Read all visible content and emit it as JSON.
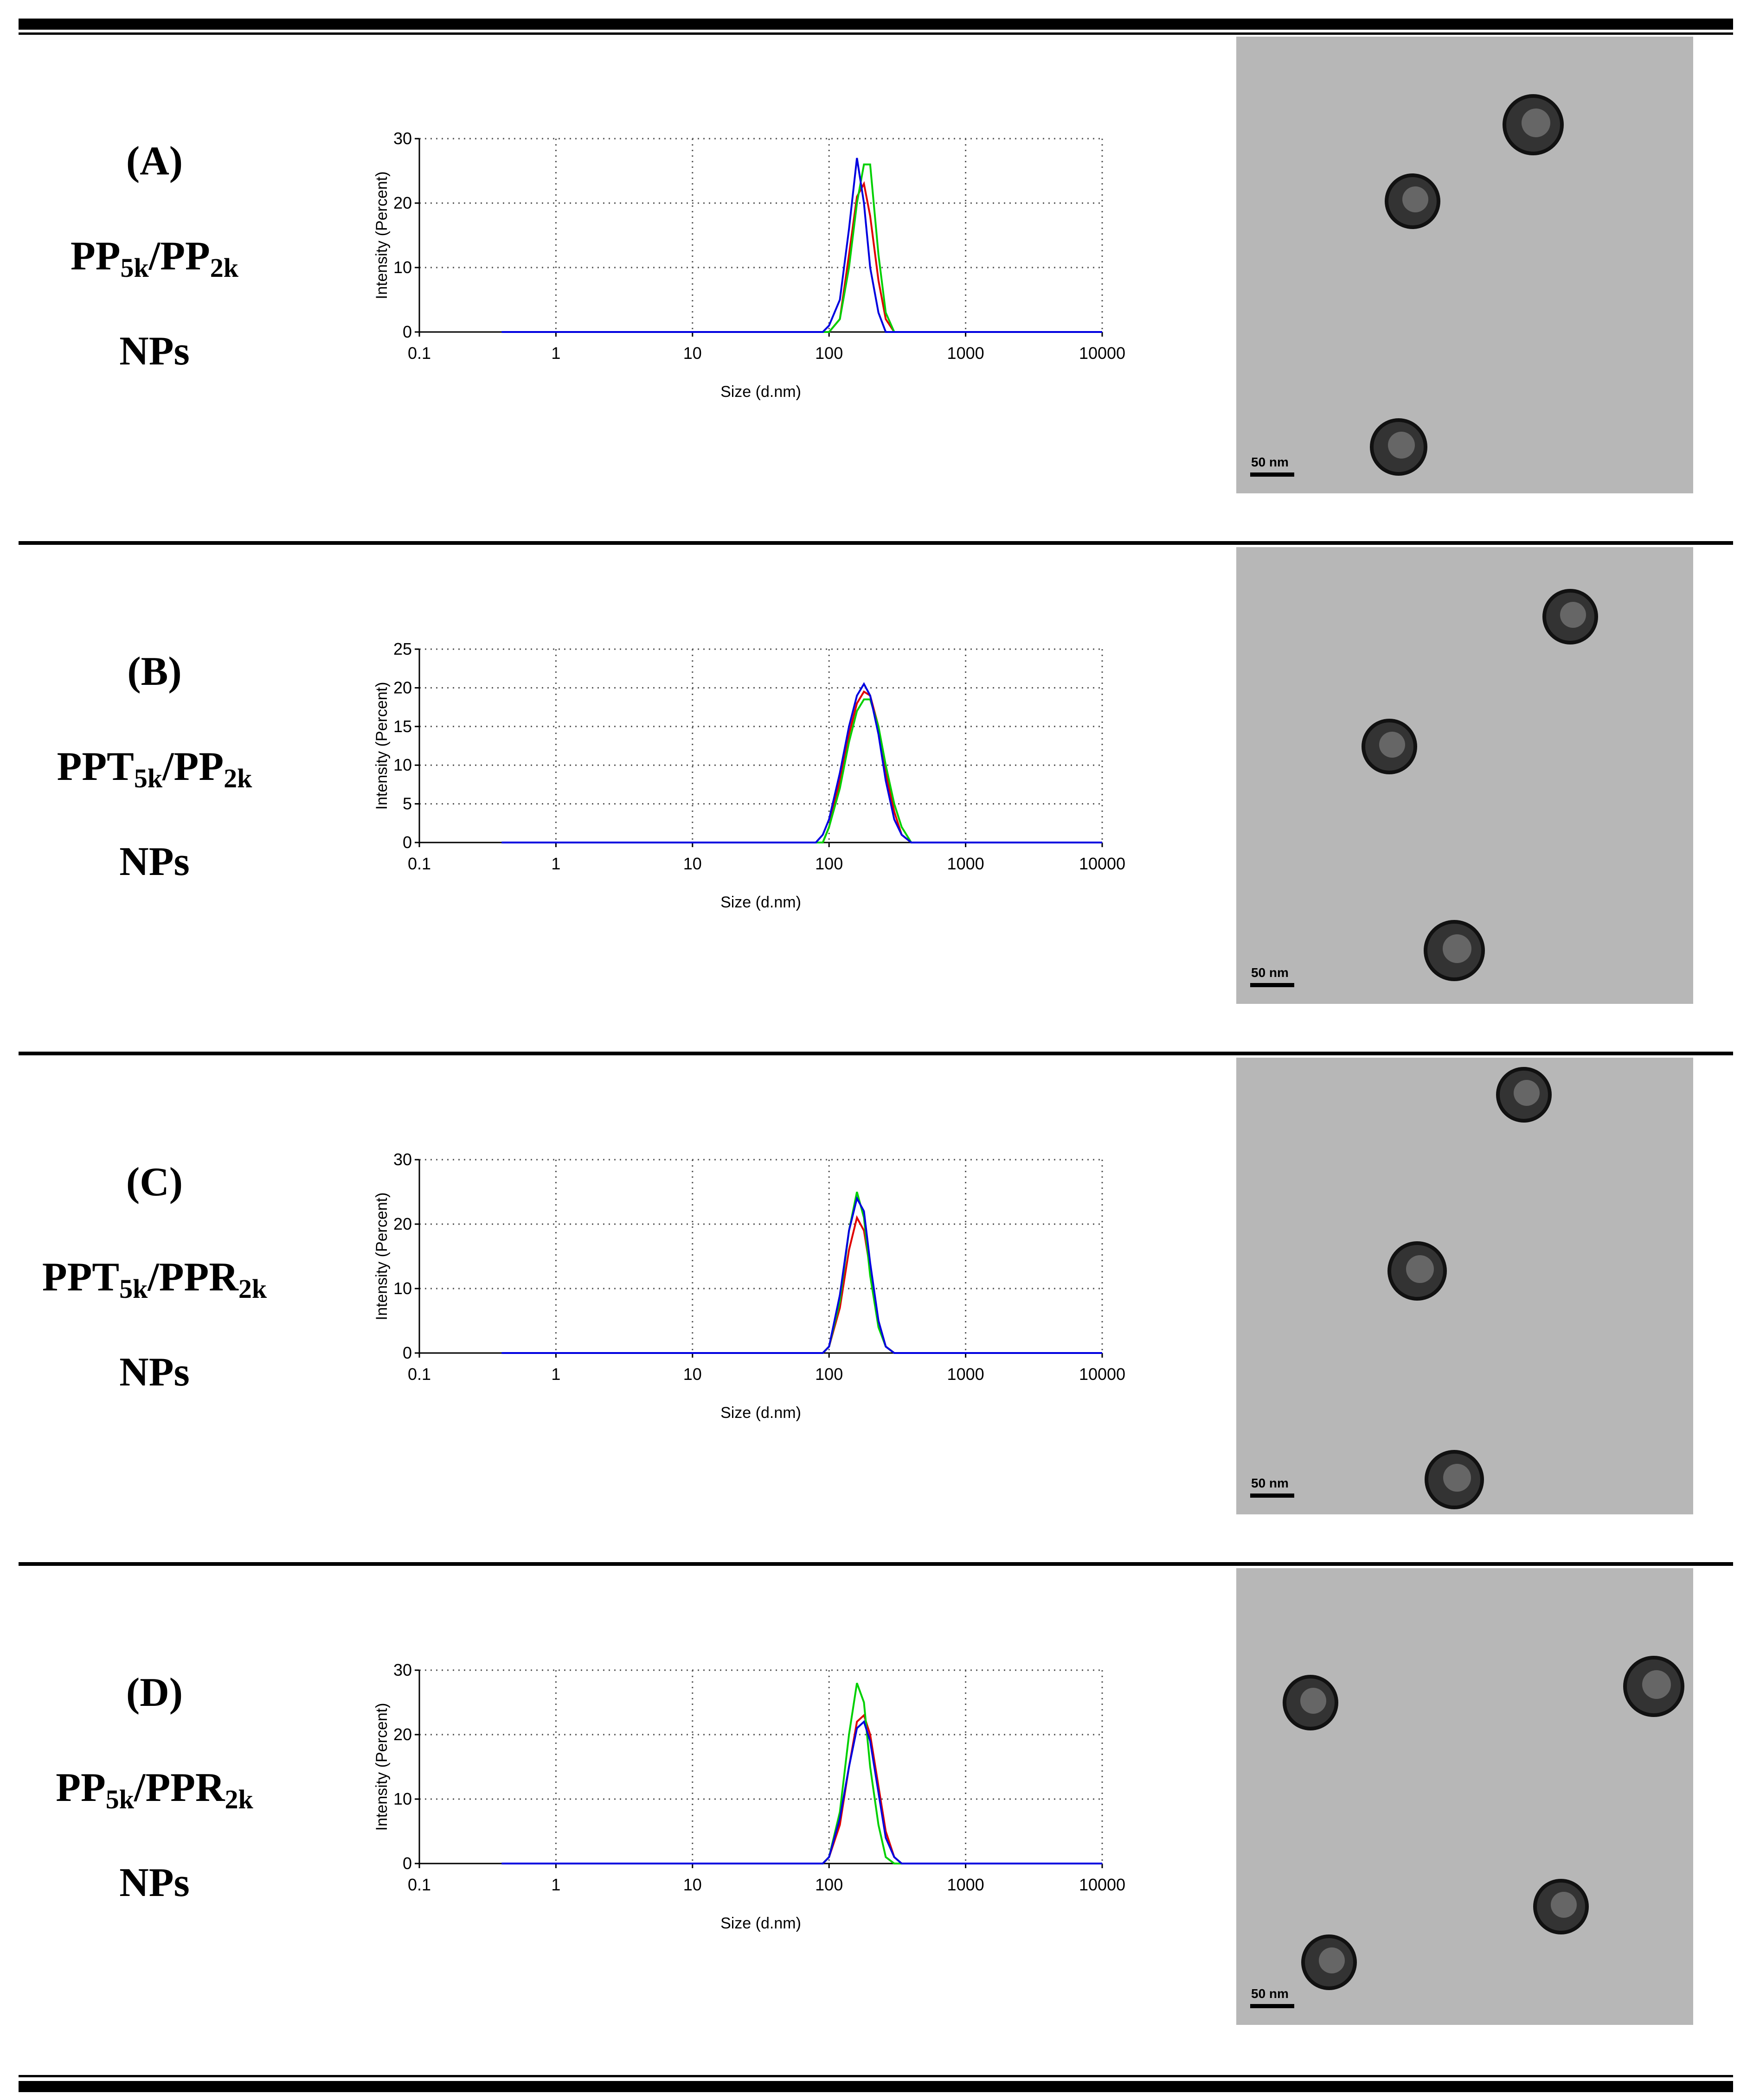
{
  "rows": [
    {
      "letter": "(A)",
      "name": [
        {
          "text": "PP"
        },
        {
          "text": "5k",
          "sub": true
        },
        {
          "text": "/PP"
        },
        {
          "text": "2k",
          "sub": true
        }
      ],
      "suffix": "NPs",
      "tem_scale": "50 nm"
    },
    {
      "letter": "(B)",
      "name": [
        {
          "text": "PPT"
        },
        {
          "text": "5k",
          "sub": true
        },
        {
          "text": "/PP"
        },
        {
          "text": "2k",
          "sub": true
        }
      ],
      "suffix": "NPs",
      "tem_scale": "50 nm"
    },
    {
      "letter": "(C)",
      "name": [
        {
          "text": "PPT"
        },
        {
          "text": "5k",
          "sub": true
        },
        {
          "text": "/PPR"
        },
        {
          "text": "2k",
          "sub": true
        }
      ],
      "suffix": "NPs",
      "tem_scale": "50 nm"
    },
    {
      "letter": "(D)",
      "name": [
        {
          "text": "PP"
        },
        {
          "text": "5k",
          "sub": true
        },
        {
          "text": "/PPR"
        },
        {
          "text": "2k",
          "sub": true
        }
      ],
      "suffix": "NPs",
      "tem_scale": "50 nm"
    }
  ],
  "chart_data": [
    {
      "type": "line",
      "xlabel": "Size (d.nm)",
      "ylabel": "Intensity (Percent)",
      "xscale": "log",
      "grid": true,
      "xlim": [
        0.1,
        10000
      ],
      "xticks": [
        0.1,
        1,
        10,
        100,
        1000,
        10000
      ],
      "ylim": [
        0,
        30
      ],
      "yticks": [
        0,
        10,
        20,
        30
      ],
      "x": [
        0.4,
        80,
        90,
        100,
        120,
        140,
        160,
        180,
        200,
        230,
        260,
        300,
        340,
        400,
        10000
      ],
      "series": [
        {
          "color": "#e00000",
          "values": [
            0,
            0,
            0,
            0,
            2,
            12,
            21,
            23,
            18,
            8,
            2,
            0,
            0,
            0,
            0
          ]
        },
        {
          "color": "#00d000",
          "values": [
            0,
            0,
            0,
            0,
            2,
            10,
            20,
            26,
            26,
            12,
            3,
            0,
            0,
            0,
            0
          ]
        },
        {
          "color": "#0000e0",
          "values": [
            0,
            0,
            0,
            1,
            5,
            16,
            27,
            20,
            10,
            3,
            0,
            0,
            0,
            0,
            0
          ]
        }
      ]
    },
    {
      "type": "line",
      "xlabel": "Size (d.nm)",
      "ylabel": "Intensity (Percent)",
      "xscale": "log",
      "grid": true,
      "xlim": [
        0.1,
        10000
      ],
      "xticks": [
        0.1,
        1,
        10,
        100,
        1000,
        10000
      ],
      "ylim": [
        0,
        25
      ],
      "yticks": [
        0,
        5,
        10,
        15,
        20,
        25
      ],
      "x": [
        0.4,
        80,
        90,
        100,
        120,
        140,
        160,
        180,
        200,
        230,
        260,
        300,
        340,
        400,
        10000
      ],
      "series": [
        {
          "color": "#e00000",
          "values": [
            0,
            0,
            0,
            2,
            8,
            14,
            18,
            19.5,
            19,
            15,
            9,
            4,
            1,
            0,
            0
          ]
        },
        {
          "color": "#00d000",
          "values": [
            0,
            0,
            0,
            2,
            7,
            13,
            17,
            18.5,
            18.5,
            15,
            10,
            5,
            2,
            0,
            0
          ]
        },
        {
          "color": "#0000e0",
          "values": [
            0,
            0,
            1,
            3,
            9,
            15,
            19,
            20.5,
            19,
            14,
            8,
            3,
            1,
            0,
            0
          ]
        }
      ]
    },
    {
      "type": "line",
      "xlabel": "Size (d.nm)",
      "ylabel": "Intensity (Percent)",
      "xscale": "log",
      "grid": true,
      "xlim": [
        0.1,
        10000
      ],
      "xticks": [
        0.1,
        1,
        10,
        100,
        1000,
        10000
      ],
      "ylim": [
        0,
        30
      ],
      "yticks": [
        0,
        10,
        20,
        30
      ],
      "x": [
        0.4,
        80,
        90,
        100,
        120,
        140,
        160,
        180,
        200,
        230,
        260,
        300,
        340,
        400,
        10000
      ],
      "series": [
        {
          "color": "#e00000",
          "values": [
            0,
            0,
            0,
            1,
            7,
            16,
            21,
            19,
            13,
            5,
            1,
            0,
            0,
            0,
            0
          ]
        },
        {
          "color": "#00d000",
          "values": [
            0,
            0,
            0,
            1,
            8,
            19,
            25,
            21,
            12,
            4,
            1,
            0,
            0,
            0,
            0
          ]
        },
        {
          "color": "#0000e0",
          "values": [
            0,
            0,
            0,
            1,
            9,
            19,
            24,
            22,
            14,
            5,
            1,
            0,
            0,
            0,
            0
          ]
        }
      ]
    },
    {
      "type": "line",
      "xlabel": "Size (d.nm)",
      "ylabel": "Intensity (Percent)",
      "xscale": "log",
      "grid": true,
      "xlim": [
        0.1,
        10000
      ],
      "xticks": [
        0.1,
        1,
        10,
        100,
        1000,
        10000
      ],
      "ylim": [
        0,
        30
      ],
      "yticks": [
        0,
        10,
        20,
        30
      ],
      "x": [
        0.4,
        80,
        90,
        100,
        120,
        140,
        160,
        180,
        200,
        230,
        260,
        300,
        340,
        400,
        10000
      ],
      "series": [
        {
          "color": "#e00000",
          "values": [
            0,
            0,
            0,
            1,
            6,
            15,
            22,
            23,
            20,
            12,
            5,
            1,
            0,
            0,
            0
          ]
        },
        {
          "color": "#00d000",
          "values": [
            0,
            0,
            0,
            1,
            8,
            20,
            28,
            25,
            15,
            6,
            1,
            0,
            0,
            0,
            0
          ]
        },
        {
          "color": "#0000e0",
          "values": [
            0,
            0,
            0,
            1,
            7,
            15,
            21,
            22,
            19,
            11,
            4,
            1,
            0,
            0,
            0
          ]
        }
      ]
    }
  ]
}
